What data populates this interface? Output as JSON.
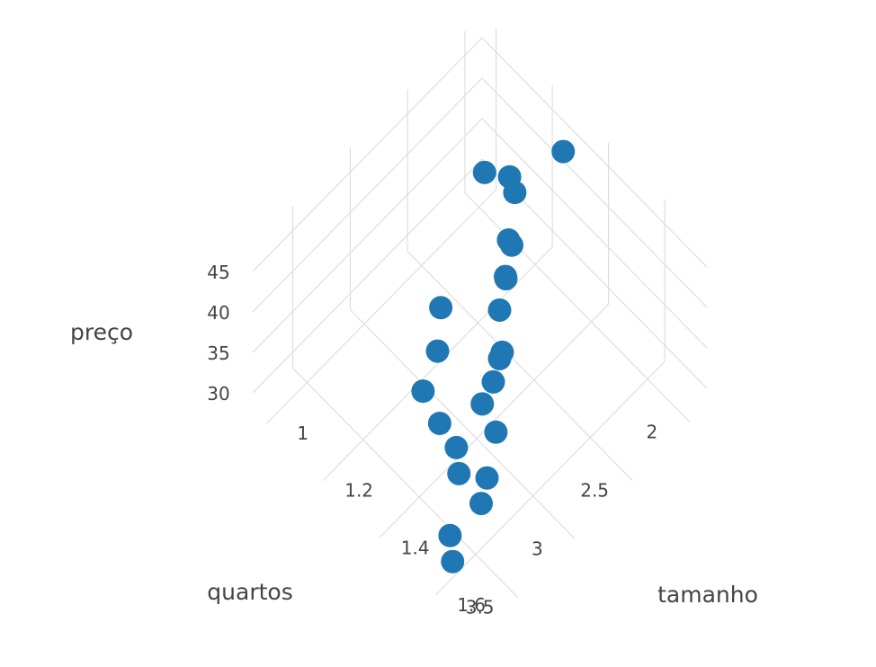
{
  "chart_data": {
    "type": "scatter3d",
    "axes": {
      "x": {
        "title": "tamanho",
        "ticks": [
          "1",
          "1.2",
          "1.4",
          "1.6"
        ]
      },
      "y": {
        "title": "quartos",
        "ticks": [
          "2",
          "2.5",
          "3",
          "3.5"
        ]
      },
      "z": {
        "title": "preço",
        "ticks": [
          "30",
          "35",
          "40",
          "45"
        ]
      }
    },
    "grid": true,
    "marker_color": "#1f77b4",
    "points": [
      {
        "tamanho": 1.02,
        "quartos": 2.0,
        "preco": 33.0
      },
      {
        "tamanho": 1.3,
        "quartos": 2.0,
        "preco": 45.5
      },
      {
        "tamanho": 1.25,
        "quartos": 2.3,
        "preco": 43.0
      },
      {
        "tamanho": 1.15,
        "quartos": 2.1,
        "preco": 38.5
      },
      {
        "tamanho": 1.28,
        "quartos": 2.4,
        "preco": 39.0
      },
      {
        "tamanho": 1.35,
        "quartos": 2.6,
        "preco": 45.0
      },
      {
        "tamanho": 1.38,
        "quartos": 2.7,
        "preco": 43.0
      },
      {
        "tamanho": 1.4,
        "quartos": 2.8,
        "preco": 41.0
      },
      {
        "tamanho": 1.3,
        "quartos": 2.5,
        "preco": 37.0
      },
      {
        "tamanho": 1.45,
        "quartos": 2.9,
        "preco": 39.0
      },
      {
        "tamanho": 1.5,
        "quartos": 3.1,
        "preco": 40.0
      },
      {
        "tamanho": 1.4,
        "quartos": 2.8,
        "preco": 35.0
      },
      {
        "tamanho": 1.55,
        "quartos": 3.2,
        "preco": 37.0
      },
      {
        "tamanho": 1.42,
        "quartos": 3.0,
        "preco": 33.0
      },
      {
        "tamanho": 1.6,
        "quartos": 3.4,
        "preco": 36.0
      },
      {
        "tamanho": 1.62,
        "quartos": 3.5,
        "preco": 35.0
      },
      {
        "tamanho": 1.22,
        "quartos": 2.9,
        "preco": 31.0
      },
      {
        "tamanho": 1.25,
        "quartos": 3.1,
        "preco": 30.0
      },
      {
        "tamanho": 1.15,
        "quartos": 2.7,
        "preco": 31.0
      },
      {
        "tamanho": 1.35,
        "quartos": 3.2,
        "preco": 31.0
      },
      {
        "tamanho": 1.45,
        "quartos": 3.3,
        "preco": 33.0
      },
      {
        "tamanho": 1.5,
        "quartos": 3.4,
        "preco": 33.0
      },
      {
        "tamanho": 1.55,
        "quartos": 3.6,
        "preco": 30.0
      },
      {
        "tamanho": 1.6,
        "quartos": 3.7,
        "preco": 30.0
      }
    ]
  }
}
